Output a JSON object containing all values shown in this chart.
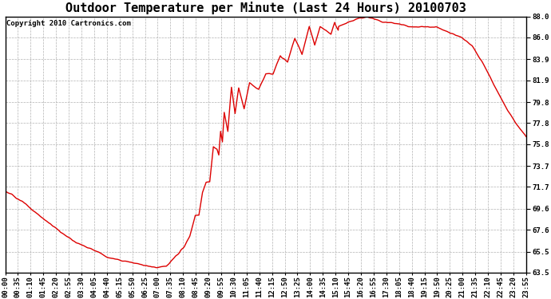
{
  "title": "Outdoor Temperature per Minute (Last 24 Hours) 20100703",
  "copyright_text": "Copyright 2010 Cartronics.com",
  "line_color": "#dd0000",
  "background_color": "#ffffff",
  "plot_bg_color": "#ffffff",
  "grid_color": "#aaaaaa",
  "ylim": [
    63.5,
    88.0
  ],
  "yticks": [
    63.5,
    65.5,
    67.6,
    69.6,
    71.7,
    73.7,
    75.8,
    77.8,
    79.8,
    81.9,
    83.9,
    86.0,
    88.0
  ],
  "xtick_labels": [
    "00:00",
    "00:35",
    "01:10",
    "01:45",
    "02:20",
    "02:55",
    "03:30",
    "04:05",
    "04:40",
    "05:15",
    "05:50",
    "06:25",
    "07:00",
    "07:35",
    "08:10",
    "08:45",
    "09:20",
    "09:55",
    "10:30",
    "11:05",
    "11:40",
    "12:15",
    "12:50",
    "13:25",
    "14:00",
    "14:35",
    "15:10",
    "15:45",
    "16:20",
    "16:55",
    "17:30",
    "18:05",
    "18:40",
    "19:15",
    "19:50",
    "20:25",
    "21:00",
    "21:35",
    "22:10",
    "22:45",
    "23:20",
    "23:55"
  ],
  "title_fontsize": 11,
  "tick_fontsize": 6.5,
  "copyright_fontsize": 6.5,
  "line_width": 1.0,
  "figsize": [
    6.9,
    3.75
  ],
  "dpi": 100,
  "control_times": [
    0,
    25,
    50,
    75,
    100,
    130,
    160,
    200,
    240,
    270,
    290,
    310,
    330,
    355,
    385,
    415,
    445,
    470,
    495,
    510,
    525,
    545,
    560,
    575,
    590,
    605,
    620,
    640,
    660,
    680,
    700,
    720,
    740,
    760,
    790,
    820,
    855,
    890,
    910,
    930,
    950,
    975,
    1000,
    1040,
    1085,
    1120,
    1155,
    1190,
    1225,
    1260,
    1290,
    1320,
    1350,
    1380,
    1410,
    1439
  ],
  "control_temps": [
    71.3,
    70.8,
    70.2,
    69.5,
    68.8,
    68.0,
    67.2,
    66.3,
    65.8,
    65.5,
    65.3,
    65.1,
    64.8,
    64.5,
    64.2,
    64.0,
    64.1,
    65.0,
    66.0,
    67.0,
    68.5,
    70.0,
    72.0,
    74.0,
    75.5,
    77.0,
    78.5,
    79.5,
    80.2,
    80.8,
    81.5,
    82.0,
    82.8,
    83.5,
    84.5,
    85.2,
    85.8,
    86.3,
    86.8,
    87.2,
    87.5,
    87.8,
    88.0,
    87.5,
    87.3,
    87.0,
    87.0,
    87.0,
    86.5,
    86.0,
    85.2,
    83.5,
    81.5,
    79.5,
    77.8,
    76.5
  ],
  "noise_points_times": [
    510,
    525,
    535,
    545,
    555,
    565,
    575,
    585,
    590,
    595,
    600,
    605,
    615,
    625,
    635,
    645,
    660,
    675,
    700,
    720,
    740,
    760,
    780,
    800,
    820,
    840,
    855,
    870,
    885,
    900,
    910,
    920
  ],
  "noise_points_deltas": [
    0.0,
    0.5,
    -0.3,
    1.2,
    0.8,
    -0.5,
    1.5,
    0.3,
    -0.8,
    1.0,
    -0.5,
    1.8,
    -1.0,
    2.5,
    -0.5,
    1.5,
    -1.0,
    1.0,
    -0.5,
    0.5,
    -0.3,
    0.8,
    -0.5,
    1.2,
    -0.8,
    1.5,
    -0.5,
    1.0,
    0.5,
    -0.3,
    0.8,
    -0.5
  ]
}
